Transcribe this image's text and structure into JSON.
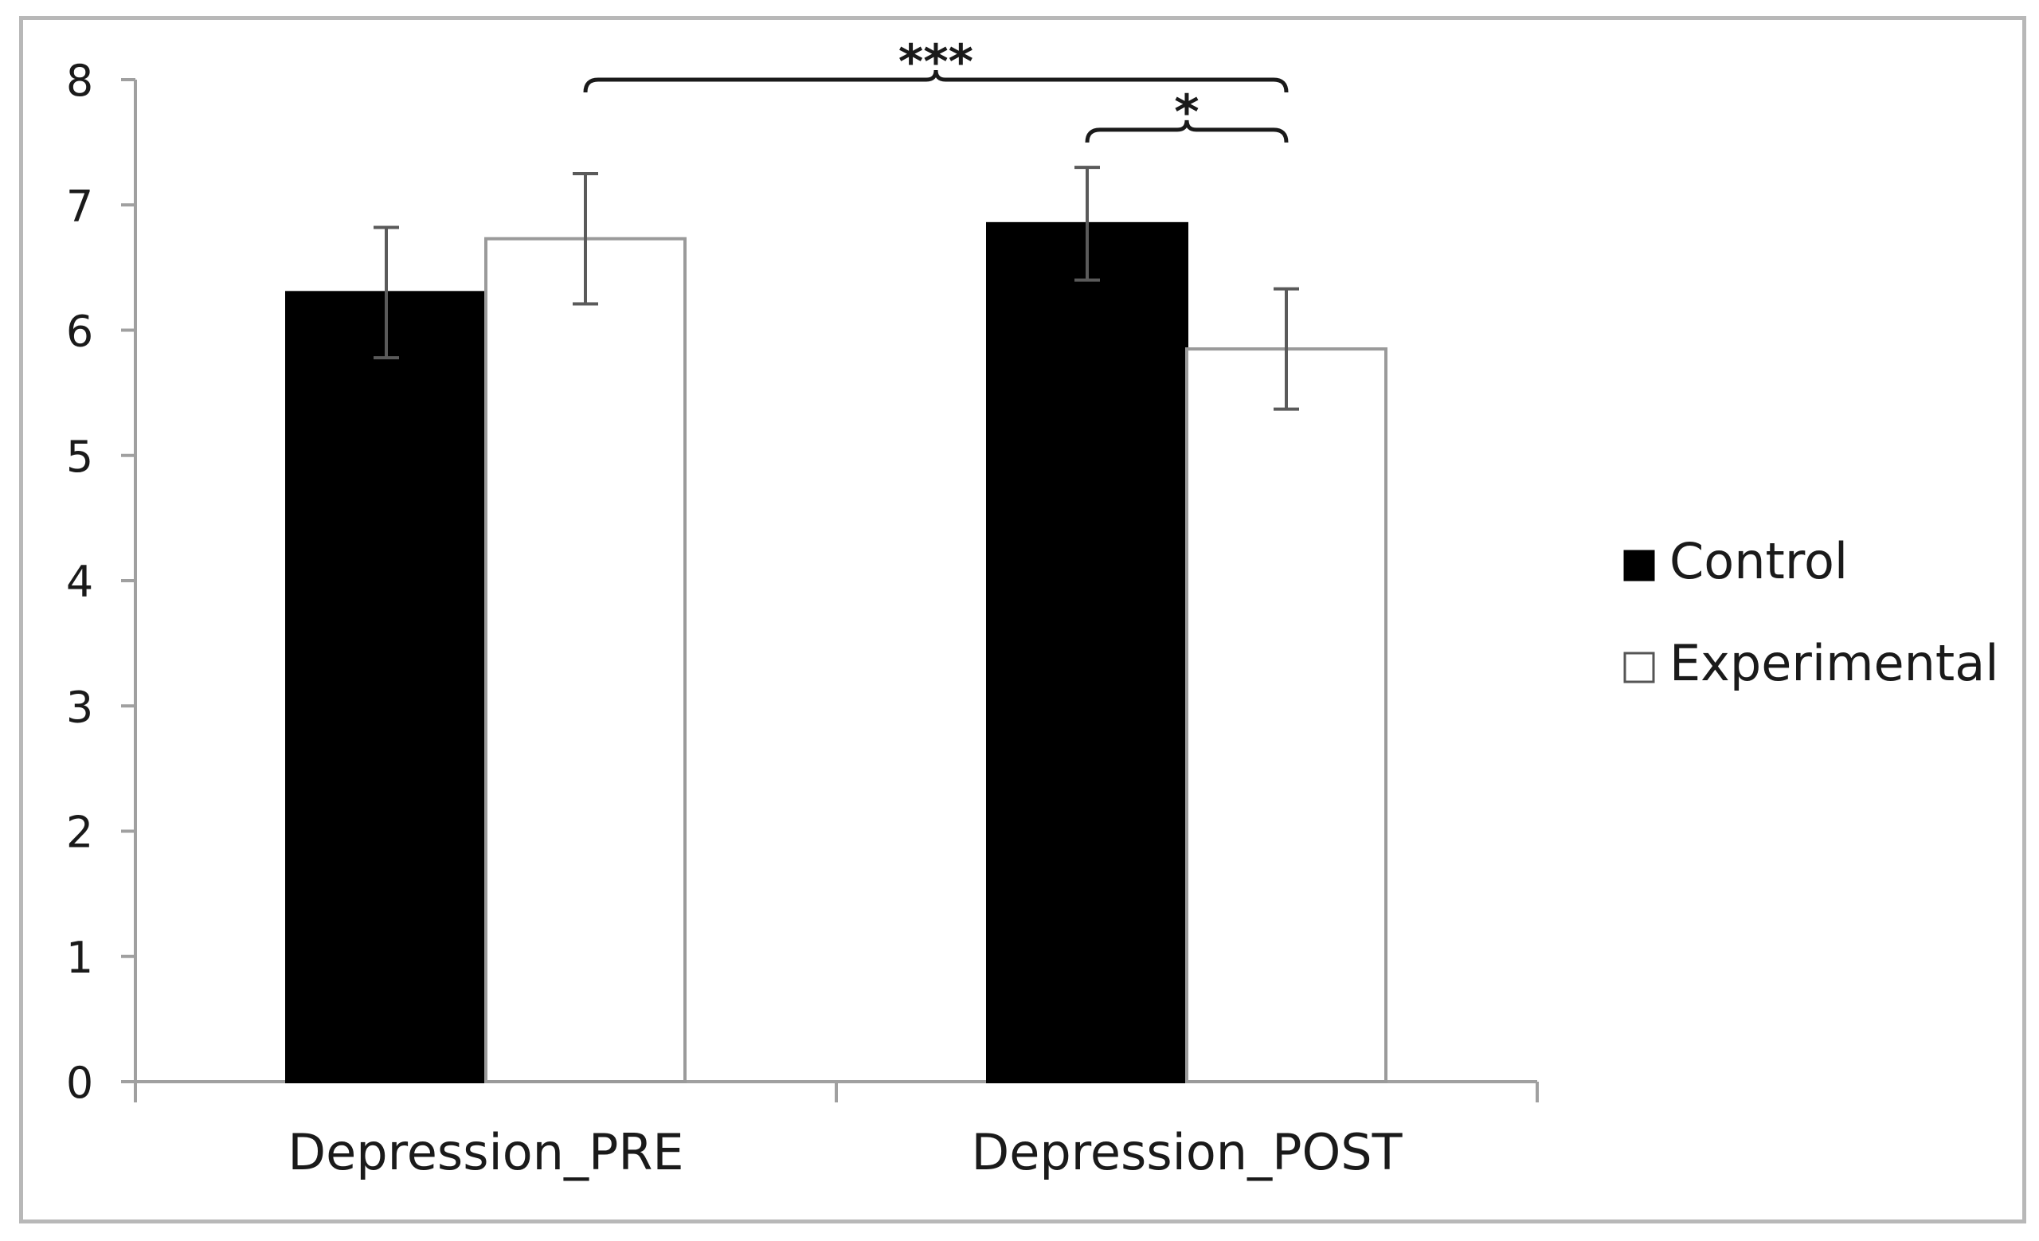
{
  "chart_data": {
    "type": "bar",
    "title": "",
    "xlabel": "",
    "ylabel": "",
    "ylim": [
      0,
      8
    ],
    "yticks": [
      0,
      1,
      2,
      3,
      4,
      5,
      6,
      7,
      8
    ],
    "categories": [
      "Depression_PRE",
      "Depression_POST"
    ],
    "series": [
      {
        "name": "Control",
        "color": "#000000",
        "values": [
          6.3,
          6.85
        ],
        "errors": [
          0.52,
          0.45
        ]
      },
      {
        "name": "Experimental",
        "color": "#ffffff",
        "values": [
          6.73,
          5.85
        ],
        "errors": [
          0.52,
          0.48
        ]
      }
    ],
    "legend": {
      "placement": "right",
      "items": [
        "Control",
        "Experimental"
      ]
    },
    "significance": [
      {
        "label": "***",
        "from": "Experimental · Depression_PRE",
        "to": "Experimental · Depression_POST",
        "level": 8.0
      },
      {
        "label": "*",
        "from": "Control · Depression_POST",
        "to": "Experimental · Depression_POST",
        "level": 7.6
      }
    ]
  }
}
